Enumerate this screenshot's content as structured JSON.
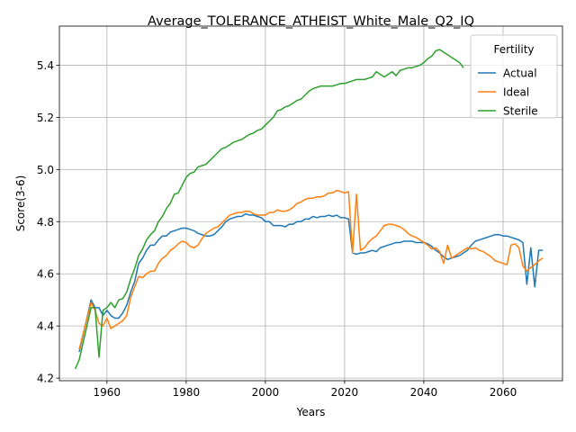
{
  "chart_data": {
    "type": "line",
    "title": "Average_TOLERANCE_ATHEIST_White_Male_Q2_IQ",
    "xlabel": "Years",
    "ylabel": "Score(3-6)",
    "xlim": [
      1948,
      2075
    ],
    "ylim": [
      4.19,
      5.55
    ],
    "xticks": [
      1960,
      1980,
      2000,
      2020,
      2040,
      2060
    ],
    "yticks": [
      4.2,
      4.4,
      4.6,
      4.8,
      5.0,
      5.2,
      5.4
    ],
    "grid": true,
    "legend": {
      "title": "Fertility",
      "placement": "top-right"
    },
    "colors": {
      "Actual": "#1f77b4",
      "Ideal": "#ff7f0e",
      "Sterile": "#2ca02c"
    },
    "series": [
      {
        "name": "Actual",
        "x": [
          1953,
          1956,
          1957,
          1958,
          1959,
          1960,
          1961,
          1962,
          1963,
          1964,
          1965,
          1966,
          1967,
          1968,
          1969,
          1970,
          1971,
          1972,
          1973,
          1974,
          1975,
          1976,
          1977,
          1978,
          1979,
          1980,
          1981,
          1982,
          1983,
          1984,
          1985,
          1986,
          1987,
          1988,
          1989,
          1990,
          1991,
          1992,
          1993,
          1994,
          1995,
          1996,
          1997,
          1998,
          1999,
          2000,
          2001,
          2002,
          2003,
          2004,
          2005,
          2006,
          2007,
          2008,
          2009,
          2010,
          2011,
          2012,
          2013,
          2014,
          2015,
          2016,
          2017,
          2018,
          2019,
          2020,
          2021,
          2022,
          2023,
          2024,
          2025,
          2026,
          2027,
          2028,
          2029,
          2030,
          2031,
          2032,
          2033,
          2034,
          2035,
          2036,
          2037,
          2038,
          2039,
          2040,
          2041,
          2042,
          2043,
          2044,
          2045,
          2046,
          2047,
          2048,
          2049,
          2050,
          2051,
          2052,
          2053,
          2054,
          2055,
          2056,
          2057,
          2058,
          2059,
          2060,
          2061,
          2062,
          2063,
          2064,
          2065,
          2066,
          2067,
          2068,
          2069,
          2070
        ],
        "y": [
          4.3,
          4.5,
          4.47,
          4.47,
          4.44,
          4.46,
          4.44,
          4.43,
          4.43,
          4.45,
          4.48,
          4.53,
          4.57,
          4.64,
          4.66,
          4.69,
          4.71,
          4.71,
          4.73,
          4.745,
          4.745,
          4.76,
          4.765,
          4.77,
          4.775,
          4.775,
          4.77,
          4.765,
          4.755,
          4.75,
          4.745,
          4.745,
          4.75,
          4.765,
          4.78,
          4.8,
          4.81,
          4.815,
          4.82,
          4.82,
          4.83,
          4.825,
          4.825,
          4.82,
          4.815,
          4.8,
          4.8,
          4.785,
          4.785,
          4.785,
          4.78,
          4.79,
          4.79,
          4.8,
          4.8,
          4.81,
          4.81,
          4.82,
          4.815,
          4.82,
          4.82,
          4.825,
          4.82,
          4.825,
          4.815,
          4.815,
          4.81,
          4.68,
          4.675,
          4.68,
          4.68,
          4.685,
          4.69,
          4.685,
          4.7,
          4.705,
          4.71,
          4.715,
          4.72,
          4.72,
          4.725,
          4.725,
          4.725,
          4.72,
          4.72,
          4.72,
          4.715,
          4.705,
          4.69,
          4.68,
          4.665,
          4.655,
          4.66,
          4.665,
          4.67,
          4.68,
          4.69,
          4.71,
          4.725,
          4.73,
          4.735,
          4.74,
          4.745,
          4.75,
          4.75,
          4.745,
          4.745,
          4.74,
          4.735,
          4.73,
          4.72,
          4.56,
          4.7,
          4.55,
          4.69,
          4.69
        ]
      },
      {
        "name": "Ideal",
        "x": [
          1953,
          1956,
          1957,
          1958,
          1959,
          1960,
          1961,
          1962,
          1963,
          1964,
          1965,
          1966,
          1967,
          1968,
          1969,
          1970,
          1971,
          1972,
          1973,
          1974,
          1975,
          1976,
          1977,
          1978,
          1979,
          1980,
          1981,
          1982,
          1983,
          1984,
          1985,
          1986,
          1987,
          1988,
          1989,
          1990,
          1991,
          1992,
          1993,
          1994,
          1995,
          1996,
          1997,
          1998,
          1999,
          2000,
          2001,
          2002,
          2003,
          2004,
          2005,
          2006,
          2007,
          2008,
          2009,
          2010,
          2011,
          2012,
          2013,
          2014,
          2015,
          2016,
          2017,
          2018,
          2019,
          2020,
          2021,
          2022,
          2023,
          2024,
          2025,
          2026,
          2027,
          2028,
          2029,
          2030,
          2031,
          2032,
          2033,
          2034,
          2035,
          2036,
          2037,
          2038,
          2039,
          2040,
          2041,
          2042,
          2043,
          2044,
          2045,
          2046,
          2047,
          2048,
          2049,
          2050,
          2051,
          2052,
          2053,
          2054,
          2055,
          2056,
          2057,
          2058,
          2059,
          2060,
          2061,
          2062,
          2063,
          2064,
          2065,
          2066,
          2067,
          2068,
          2069,
          2070
        ],
        "y": [
          4.31,
          4.49,
          4.46,
          4.41,
          4.4,
          4.43,
          4.39,
          4.4,
          4.41,
          4.42,
          4.44,
          4.51,
          4.55,
          4.59,
          4.585,
          4.6,
          4.61,
          4.61,
          4.64,
          4.66,
          4.67,
          4.69,
          4.7,
          4.715,
          4.725,
          4.72,
          4.705,
          4.7,
          4.71,
          4.735,
          4.755,
          4.765,
          4.775,
          4.78,
          4.795,
          4.81,
          4.825,
          4.83,
          4.835,
          4.835,
          4.84,
          4.84,
          4.83,
          4.825,
          4.825,
          4.825,
          4.835,
          4.835,
          4.845,
          4.84,
          4.84,
          4.845,
          4.855,
          4.87,
          4.875,
          4.885,
          4.89,
          4.89,
          4.895,
          4.895,
          4.9,
          4.91,
          4.91,
          4.92,
          4.915,
          4.91,
          4.915,
          4.68,
          4.905,
          4.69,
          4.7,
          4.72,
          4.735,
          4.745,
          4.765,
          4.785,
          4.79,
          4.79,
          4.785,
          4.78,
          4.77,
          4.755,
          4.745,
          4.74,
          4.73,
          4.72,
          4.71,
          4.695,
          4.7,
          4.685,
          4.64,
          4.71,
          4.66,
          4.67,
          4.68,
          4.69,
          4.7,
          4.695,
          4.7,
          4.69,
          4.685,
          4.675,
          4.665,
          4.65,
          4.645,
          4.64,
          4.635,
          4.71,
          4.715,
          4.7,
          4.63,
          4.61,
          4.625,
          4.635,
          4.65,
          4.66
        ]
      },
      {
        "name": "Sterile",
        "x": [
          1952,
          1953,
          1956,
          1957,
          1958,
          1959,
          1960,
          1961,
          1962,
          1963,
          1964,
          1965,
          1966,
          1967,
          1968,
          1969,
          1970,
          1971,
          1972,
          1973,
          1974,
          1975,
          1976,
          1977,
          1978,
          1979,
          1980,
          1981,
          1982,
          1983,
          1984,
          1985,
          1986,
          1987,
          1988,
          1989,
          1990,
          1991,
          1992,
          1993,
          1994,
          1995,
          1996,
          1997,
          1998,
          1999,
          2000,
          2001,
          2002,
          2003,
          2004,
          2005,
          2006,
          2007,
          2008,
          2009,
          2010,
          2011,
          2012,
          2013,
          2014,
          2015,
          2016,
          2017,
          2018,
          2019,
          2020,
          2021,
          2022,
          2023,
          2024,
          2025,
          2026,
          2027,
          2028,
          2029,
          2030,
          2031,
          2032,
          2033,
          2034,
          2035,
          2036,
          2037,
          2038,
          2039,
          2040,
          2041,
          2042,
          2043,
          2044,
          2045,
          2046,
          2047,
          2048,
          2049,
          2050
        ],
        "y": [
          4.235,
          4.27,
          4.47,
          4.47,
          4.28,
          4.46,
          4.47,
          4.49,
          4.47,
          4.5,
          4.505,
          4.53,
          4.58,
          4.62,
          4.67,
          4.695,
          4.73,
          4.75,
          4.765,
          4.8,
          4.82,
          4.85,
          4.87,
          4.905,
          4.91,
          4.94,
          4.97,
          4.985,
          4.99,
          5.01,
          5.015,
          5.02,
          5.035,
          5.05,
          5.065,
          5.08,
          5.085,
          5.095,
          5.105,
          5.11,
          5.115,
          5.125,
          5.135,
          5.14,
          5.15,
          5.155,
          5.17,
          5.185,
          5.2,
          5.225,
          5.23,
          5.24,
          5.245,
          5.255,
          5.265,
          5.27,
          5.285,
          5.3,
          5.31,
          5.315,
          5.32,
          5.32,
          5.32,
          5.32,
          5.325,
          5.33,
          5.33,
          5.335,
          5.34,
          5.345,
          5.345,
          5.345,
          5.35,
          5.355,
          5.375,
          5.365,
          5.355,
          5.365,
          5.375,
          5.36,
          5.38,
          5.385,
          5.39,
          5.39,
          5.395,
          5.4,
          5.41,
          5.425,
          5.435,
          5.455,
          5.46,
          5.45,
          5.44,
          5.43,
          5.42,
          5.41,
          5.39
        ]
      }
    ]
  }
}
